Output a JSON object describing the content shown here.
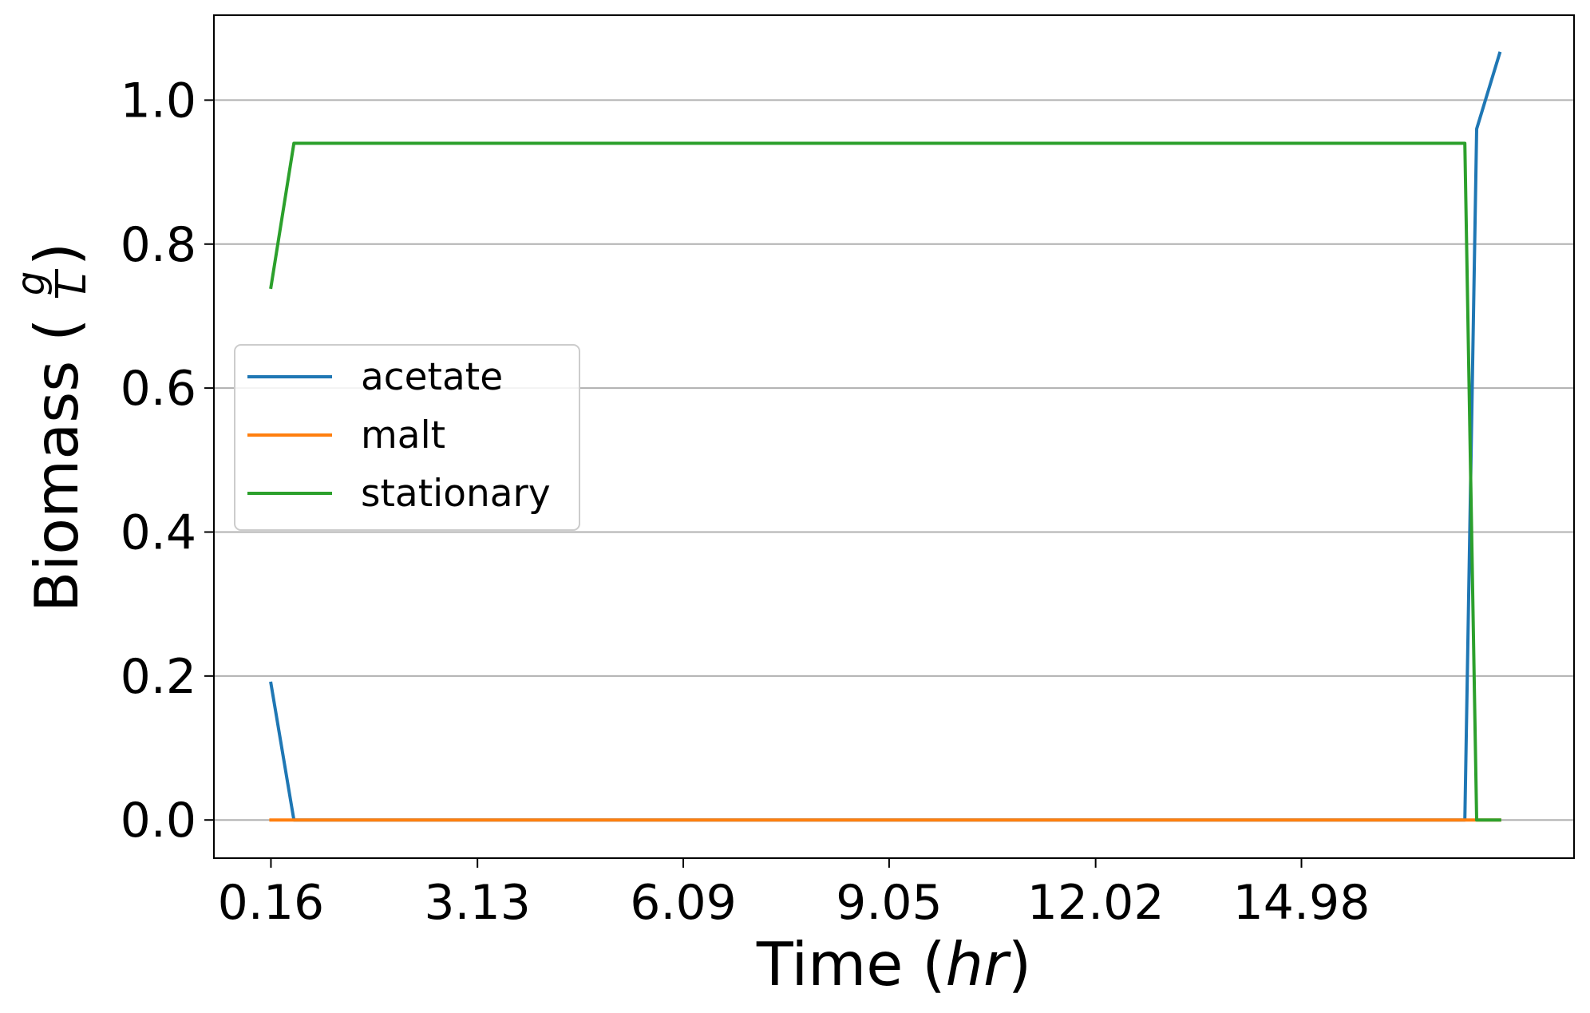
{
  "chart_data": {
    "type": "line",
    "xlabel": {
      "prefix": "Time (",
      "unit": "hr",
      "suffix": ")"
    },
    "ylabel": {
      "prefix": "Biomass (",
      "numerator": "g",
      "denominator": "L",
      "suffix": ")"
    },
    "xlim": [
      -0.66,
      18.9
    ],
    "ylim": [
      -0.053,
      1.118
    ],
    "x_ticks": [
      0.16,
      3.13,
      6.09,
      9.05,
      12.02,
      14.98
    ],
    "x_tick_labels": [
      "0.16",
      "3.13",
      "6.09",
      "9.05",
      "12.02",
      "14.98"
    ],
    "y_ticks": [
      0,
      0.2,
      0.4,
      0.6,
      0.8,
      1
    ],
    "y_tick_labels": [
      "0.0",
      "0.2",
      "0.4",
      "0.6",
      "0.8",
      "1.0"
    ],
    "grid": "y-major",
    "legend_position": "center-left",
    "series": [
      {
        "name": "acetate",
        "color": "#1f77b4",
        "x": [
          0.16,
          0.49,
          17.33,
          17.5,
          17.83
        ],
        "y": [
          0.19,
          0.0,
          0.0,
          0.96,
          1.065
        ]
      },
      {
        "name": "malt",
        "color": "#ff7f0e",
        "x": [
          0.16,
          17.83
        ],
        "y": [
          0.0,
          0.0
        ]
      },
      {
        "name": "stationary",
        "color": "#2ca02c",
        "x": [
          0.16,
          0.49,
          17.33,
          17.5,
          17.83
        ],
        "y": [
          0.74,
          0.94,
          0.94,
          0.0,
          0.0
        ]
      }
    ]
  }
}
